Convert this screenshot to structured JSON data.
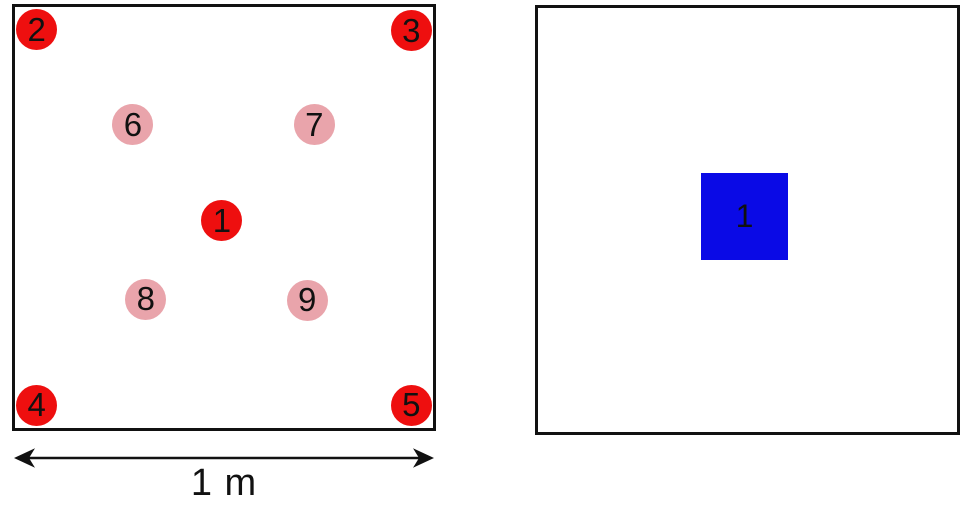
{
  "figure": {
    "description_label": "two square arenas side by side",
    "background": "#ffffff"
  },
  "colors": {
    "bright_dot": "#ee0f0f",
    "faded_dot": "#e9a4ab",
    "blue_marker": "#0a0ae6",
    "outline": "#111111",
    "label_text": "#111111"
  },
  "left_panel": {
    "scale_label": "1 m",
    "points": [
      {
        "label": "1",
        "fx": 0.495,
        "fy": 0.508,
        "kind": "bright"
      },
      {
        "label": "2",
        "fx": 0.052,
        "fy": 0.054,
        "kind": "bright"
      },
      {
        "label": "3",
        "fx": 0.948,
        "fy": 0.056,
        "kind": "bright"
      },
      {
        "label": "4",
        "fx": 0.052,
        "fy": 0.946,
        "kind": "bright"
      },
      {
        "label": "5",
        "fx": 0.948,
        "fy": 0.946,
        "kind": "bright"
      },
      {
        "label": "6",
        "fx": 0.282,
        "fy": 0.28,
        "kind": "faded"
      },
      {
        "label": "7",
        "fx": 0.716,
        "fy": 0.28,
        "kind": "faded"
      },
      {
        "label": "8",
        "fx": 0.313,
        "fy": 0.694,
        "kind": "faded"
      },
      {
        "label": "9",
        "fx": 0.699,
        "fy": 0.696,
        "kind": "faded"
      }
    ]
  },
  "right_panel": {
    "marker_label": "1",
    "marker": {
      "fx": 0.493,
      "fy": 0.492,
      "fsize": 0.206
    }
  }
}
